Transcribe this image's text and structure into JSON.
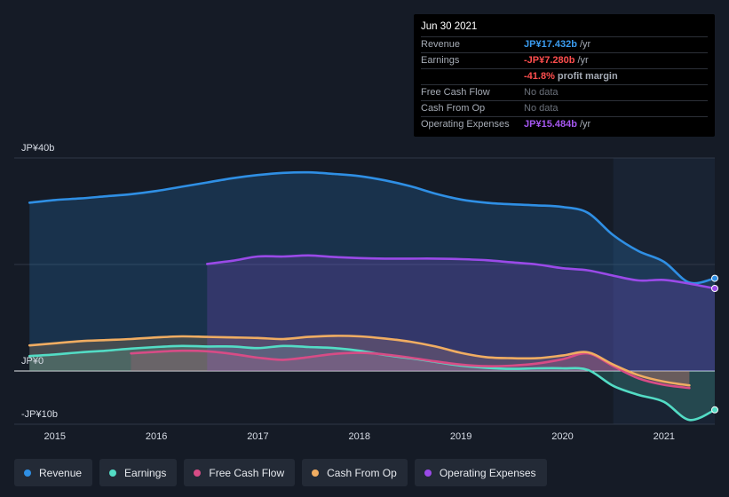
{
  "chart_data": {
    "type": "area",
    "y_labels": {
      "top": "JP¥40b",
      "zero": "JP¥0",
      "bottom": "-JP¥10b"
    },
    "ylim": [
      -10,
      40
    ],
    "x_ticks": [
      "2015",
      "2016",
      "2017",
      "2018",
      "2019",
      "2020",
      "2021"
    ],
    "x_tick_values": [
      2015,
      2016,
      2017,
      2018,
      2019,
      2020,
      2021
    ],
    "xlim": [
      2014.6,
      2021.5
    ],
    "future_shade_start": 2020.5,
    "series": [
      {
        "name": "Revenue",
        "color": "#2f8fe4",
        "x": [
          2014.75,
          2015.0,
          2015.25,
          2015.5,
          2015.75,
          2016.0,
          2016.25,
          2016.5,
          2016.75,
          2017.0,
          2017.25,
          2017.5,
          2017.75,
          2018.0,
          2018.25,
          2018.5,
          2018.75,
          2019.0,
          2019.25,
          2019.5,
          2019.75,
          2020.0,
          2020.25,
          2020.5,
          2020.75,
          2021.0,
          2021.25,
          2021.5
        ],
        "values": [
          31.6,
          32.1,
          32.4,
          32.8,
          33.2,
          33.8,
          34.6,
          35.4,
          36.2,
          36.8,
          37.2,
          37.3,
          37.0,
          36.6,
          35.8,
          34.7,
          33.3,
          32.2,
          31.6,
          31.3,
          31.1,
          30.8,
          29.7,
          25.5,
          22.5,
          20.5,
          16.6,
          17.4
        ]
      },
      {
        "name": "Earnings",
        "color": "#53dcc5",
        "x": [
          2014.75,
          2015.0,
          2015.25,
          2015.5,
          2015.75,
          2016.0,
          2016.25,
          2016.5,
          2016.75,
          2017.0,
          2017.25,
          2017.5,
          2017.75,
          2018.0,
          2018.25,
          2018.5,
          2018.75,
          2019.0,
          2019.25,
          2019.5,
          2019.75,
          2020.0,
          2020.25,
          2020.5,
          2020.75,
          2021.0,
          2021.25,
          2021.5
        ],
        "values": [
          2.8,
          3.1,
          3.5,
          3.8,
          4.2,
          4.5,
          4.7,
          4.6,
          4.6,
          4.3,
          4.7,
          4.5,
          4.3,
          3.8,
          3.0,
          2.4,
          1.7,
          1.0,
          0.6,
          0.4,
          0.5,
          0.5,
          0.2,
          -2.8,
          -4.5,
          -5.8,
          -9.2,
          -7.3
        ]
      },
      {
        "name": "Free Cash Flow",
        "color": "#d74c86",
        "x": [
          2015.75,
          2016.0,
          2016.25,
          2016.5,
          2016.75,
          2017.0,
          2017.25,
          2017.5,
          2017.75,
          2018.0,
          2018.25,
          2018.5,
          2018.75,
          2019.0,
          2019.25,
          2019.5,
          2019.75,
          2020.0,
          2020.25,
          2020.5,
          2020.75,
          2021.0,
          2021.25
        ],
        "values": [
          3.3,
          3.6,
          3.8,
          3.7,
          3.2,
          2.5,
          2.1,
          2.6,
          3.2,
          3.4,
          3.1,
          2.5,
          1.8,
          1.2,
          0.9,
          1.0,
          1.4,
          2.2,
          3.3,
          0.9,
          -1.4,
          -2.6,
          -3.2
        ]
      },
      {
        "name": "Cash From Op",
        "color": "#f0ad62",
        "x": [
          2014.75,
          2015.0,
          2015.25,
          2015.5,
          2015.75,
          2016.0,
          2016.25,
          2016.5,
          2016.75,
          2017.0,
          2017.25,
          2017.5,
          2017.75,
          2018.0,
          2018.25,
          2018.5,
          2018.75,
          2019.0,
          2019.25,
          2019.5,
          2019.75,
          2020.0,
          2020.25,
          2020.5,
          2020.75,
          2021.0,
          2021.25
        ],
        "values": [
          4.8,
          5.2,
          5.6,
          5.8,
          6.0,
          6.3,
          6.5,
          6.4,
          6.3,
          6.2,
          6.0,
          6.4,
          6.6,
          6.5,
          6.1,
          5.5,
          4.6,
          3.4,
          2.6,
          2.4,
          2.4,
          2.9,
          3.5,
          1.2,
          -0.8,
          -2.0,
          -2.7
        ]
      },
      {
        "name": "Operating Expenses",
        "color": "#9a4ae8",
        "x": [
          2016.5,
          2016.75,
          2017.0,
          2017.25,
          2017.5,
          2017.75,
          2018.0,
          2018.25,
          2018.5,
          2018.75,
          2019.0,
          2019.25,
          2019.5,
          2019.75,
          2020.0,
          2020.25,
          2020.5,
          2020.75,
          2021.0,
          2021.25,
          2021.5
        ],
        "values": [
          20.1,
          20.7,
          21.5,
          21.5,
          21.7,
          21.4,
          21.2,
          21.1,
          21.1,
          21.1,
          21.0,
          20.8,
          20.4,
          20.0,
          19.3,
          18.9,
          17.9,
          17.0,
          17.1,
          16.4,
          15.5
        ]
      }
    ]
  },
  "tooltip": {
    "date": "Jun 30 2021",
    "rows": [
      {
        "label": "Revenue",
        "value": "JP¥17.432b",
        "unit": "/yr",
        "color": "#3b9cf0"
      },
      {
        "label": "Earnings",
        "value": "-JP¥7.280b",
        "unit": "/yr",
        "color": "#ff4e4e"
      },
      {
        "label": "",
        "value": "-41.8%",
        "unit": "profit margin",
        "color": "#ff4e4e"
      },
      {
        "label": "Free Cash Flow",
        "value": "No data",
        "unit": "",
        "color": "#6b717b"
      },
      {
        "label": "Cash From Op",
        "value": "No data",
        "unit": "",
        "color": "#6b717b"
      },
      {
        "label": "Operating Expenses",
        "value": "JP¥15.484b",
        "unit": "/yr",
        "color": "#a557f0"
      }
    ]
  },
  "legend": [
    {
      "label": "Revenue",
      "color": "#2f8fe4"
    },
    {
      "label": "Earnings",
      "color": "#53dcc5"
    },
    {
      "label": "Free Cash Flow",
      "color": "#d74c86"
    },
    {
      "label": "Cash From Op",
      "color": "#f0ad62"
    },
    {
      "label": "Operating Expenses",
      "color": "#9a4ae8"
    }
  ]
}
